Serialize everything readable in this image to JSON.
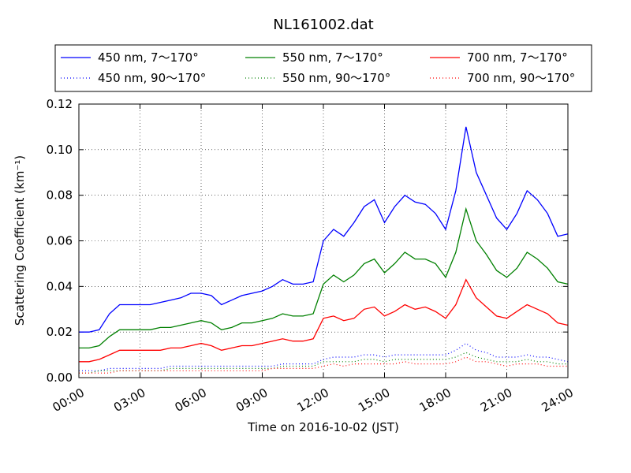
{
  "chart_data": {
    "type": "line",
    "title": "NL161002.dat",
    "xlabel": "Time on 2016-10-02 (JST)",
    "ylabel": "Scattering Coefficient (km⁻¹)",
    "x": [
      0,
      0.5,
      1,
      1.5,
      2,
      2.5,
      3,
      3.5,
      4,
      4.5,
      5,
      5.5,
      6,
      6.5,
      7,
      7.5,
      8,
      8.5,
      9,
      9.5,
      10,
      10.5,
      11,
      11.5,
      12,
      12.5,
      13,
      13.5,
      14,
      14.5,
      15,
      15.5,
      16,
      16.5,
      17,
      17.5,
      18,
      18.5,
      19,
      19.5,
      20,
      20.5,
      21,
      21.5,
      22,
      22.5,
      23,
      23.5,
      24
    ],
    "xlim": [
      0,
      24
    ],
    "xticks": [
      {
        "value": 0,
        "label": "00:00"
      },
      {
        "value": 3,
        "label": "03:00"
      },
      {
        "value": 6,
        "label": "06:00"
      },
      {
        "value": 9,
        "label": "09:00"
      },
      {
        "value": 12,
        "label": "12:00"
      },
      {
        "value": 15,
        "label": "15:00"
      },
      {
        "value": 18,
        "label": "18:00"
      },
      {
        "value": 21,
        "label": "21:00"
      },
      {
        "value": 24,
        "label": "24:00"
      }
    ],
    "ylim": [
      0,
      0.12
    ],
    "yticks": [
      {
        "value": 0,
        "label": "0.00"
      },
      0.02,
      0.04,
      0.06,
      0.08,
      {
        "value": 0.1,
        "label": "0.10"
      },
      0.12
    ],
    "grid": true,
    "series": [
      {
        "name": "450 nm, 7～170°",
        "color": "#0000ff",
        "linestyle": "solid",
        "values": [
          0.02,
          0.02,
          0.021,
          0.028,
          0.032,
          0.032,
          0.032,
          0.032,
          0.033,
          0.034,
          0.035,
          0.037,
          0.037,
          0.036,
          0.032,
          0.034,
          0.036,
          0.037,
          0.038,
          0.04,
          0.043,
          0.041,
          0.041,
          0.042,
          0.06,
          0.065,
          0.062,
          0.068,
          0.075,
          0.078,
          0.068,
          0.075,
          0.08,
          0.077,
          0.076,
          0.072,
          0.065,
          0.082,
          0.11,
          0.09,
          0.08,
          0.07,
          0.065,
          0.072,
          0.082,
          0.078,
          0.072,
          0.062,
          0.063
        ]
      },
      {
        "name": "450 nm, 90～170°",
        "color": "#0000ff",
        "linestyle": "dotted",
        "values": [
          0.003,
          0.003,
          0.003,
          0.004,
          0.004,
          0.004,
          0.004,
          0.004,
          0.004,
          0.005,
          0.005,
          0.005,
          0.005,
          0.005,
          0.005,
          0.005,
          0.005,
          0.005,
          0.005,
          0.005,
          0.006,
          0.006,
          0.006,
          0.006,
          0.008,
          0.009,
          0.009,
          0.009,
          0.01,
          0.01,
          0.009,
          0.01,
          0.01,
          0.01,
          0.01,
          0.01,
          0.01,
          0.012,
          0.015,
          0.012,
          0.011,
          0.009,
          0.009,
          0.009,
          0.01,
          0.009,
          0.009,
          0.008,
          0.007
        ]
      },
      {
        "name": "550 nm, 7～170°",
        "color": "#008000",
        "linestyle": "solid",
        "values": [
          0.013,
          0.013,
          0.014,
          0.018,
          0.021,
          0.021,
          0.021,
          0.021,
          0.022,
          0.022,
          0.023,
          0.024,
          0.025,
          0.024,
          0.021,
          0.022,
          0.024,
          0.024,
          0.025,
          0.026,
          0.028,
          0.027,
          0.027,
          0.028,
          0.041,
          0.045,
          0.042,
          0.045,
          0.05,
          0.052,
          0.046,
          0.05,
          0.055,
          0.052,
          0.052,
          0.05,
          0.044,
          0.055,
          0.074,
          0.06,
          0.054,
          0.047,
          0.044,
          0.048,
          0.055,
          0.052,
          0.048,
          0.042,
          0.041
        ]
      },
      {
        "name": "550 nm, 90～170°",
        "color": "#008000",
        "linestyle": "dotted",
        "values": [
          0.002,
          0.002,
          0.003,
          0.003,
          0.003,
          0.003,
          0.003,
          0.003,
          0.003,
          0.004,
          0.004,
          0.004,
          0.004,
          0.004,
          0.004,
          0.004,
          0.004,
          0.004,
          0.004,
          0.004,
          0.005,
          0.005,
          0.005,
          0.005,
          0.007,
          0.007,
          0.007,
          0.007,
          0.008,
          0.008,
          0.007,
          0.008,
          0.008,
          0.008,
          0.008,
          0.008,
          0.008,
          0.009,
          0.011,
          0.009,
          0.008,
          0.007,
          0.007,
          0.007,
          0.008,
          0.007,
          0.007,
          0.006,
          0.006
        ]
      },
      {
        "name": "700 nm, 7～170°",
        "color": "#ff0000",
        "linestyle": "solid",
        "values": [
          0.007,
          0.007,
          0.008,
          0.01,
          0.012,
          0.012,
          0.012,
          0.012,
          0.012,
          0.013,
          0.013,
          0.014,
          0.015,
          0.014,
          0.012,
          0.013,
          0.014,
          0.014,
          0.015,
          0.016,
          0.017,
          0.016,
          0.016,
          0.017,
          0.026,
          0.027,
          0.025,
          0.026,
          0.03,
          0.031,
          0.027,
          0.029,
          0.032,
          0.03,
          0.031,
          0.029,
          0.026,
          0.032,
          0.043,
          0.035,
          0.031,
          0.027,
          0.026,
          0.029,
          0.032,
          0.03,
          0.028,
          0.024,
          0.023
        ]
      },
      {
        "name": "700 nm, 90～170°",
        "color": "#ff0000",
        "linestyle": "dotted",
        "values": [
          0.002,
          0.002,
          0.002,
          0.002,
          0.003,
          0.003,
          0.003,
          0.003,
          0.003,
          0.003,
          0.003,
          0.003,
          0.003,
          0.003,
          0.003,
          0.003,
          0.003,
          0.003,
          0.003,
          0.004,
          0.004,
          0.004,
          0.004,
          0.004,
          0.005,
          0.006,
          0.005,
          0.006,
          0.006,
          0.006,
          0.006,
          0.006,
          0.007,
          0.006,
          0.006,
          0.006,
          0.006,
          0.007,
          0.009,
          0.007,
          0.007,
          0.006,
          0.005,
          0.006,
          0.006,
          0.006,
          0.005,
          0.005,
          0.005
        ]
      }
    ]
  }
}
